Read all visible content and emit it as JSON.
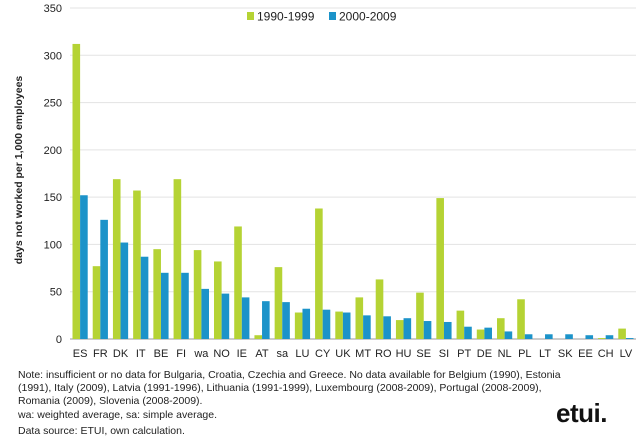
{
  "chart_data": {
    "type": "bar",
    "ylabel": "days not worked per 1,000 employees",
    "xlabel": "",
    "ylim": [
      0,
      350
    ],
    "yticks": [
      0,
      50,
      100,
      150,
      200,
      250,
      300,
      350
    ],
    "legend_position": "top-center",
    "categories": [
      "ES",
      "FR",
      "DK",
      "IT",
      "BE",
      "FI",
      "wa",
      "NO",
      "IE",
      "AT",
      "sa",
      "LU",
      "CY",
      "UK",
      "MT",
      "RO",
      "HU",
      "SE",
      "SI",
      "PT",
      "DE",
      "NL",
      "PL",
      "LT",
      "SK",
      "EE",
      "CH",
      "LV"
    ],
    "series": [
      {
        "name": "1990-1999",
        "color": "#b5d334",
        "values": [
          312,
          77,
          169,
          157,
          95,
          169,
          94,
          82,
          119,
          4,
          76,
          28,
          138,
          29,
          44,
          63,
          20,
          49,
          149,
          30,
          10,
          22,
          42,
          0,
          0,
          0,
          1,
          11
        ]
      },
      {
        "name": "2000-2009",
        "color": "#1c93c9",
        "values": [
          152,
          126,
          102,
          87,
          70,
          70,
          53,
          48,
          44,
          40,
          39,
          32,
          31,
          28,
          25,
          24,
          22,
          19,
          18,
          13,
          12,
          8,
          5,
          5,
          5,
          4,
          4,
          1
        ]
      }
    ]
  },
  "notes": {
    "line1": "Note: insufficient or no data for Bulgaria, Croatia, Czechia and Greece. No data available for Belgium (1990), Estonia (1991), Italy (2009), Latvia (1991-1996), Lithuania (1991-1999), Luxembourg (2008-2009), Portugal (2008-2009), Romania (2009), Slovenia (2008-2009).",
    "line2": "wa: weighted average, sa: simple average.",
    "line3": "Data source: ETUI, own calculation."
  },
  "logo_text": "etui."
}
